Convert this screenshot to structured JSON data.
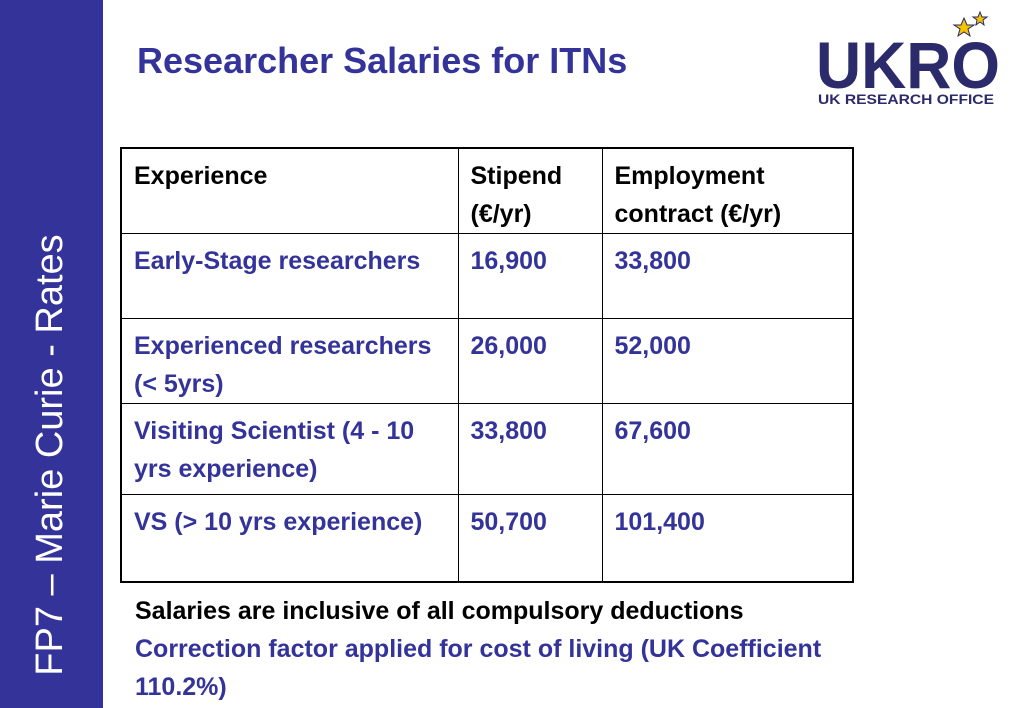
{
  "sidebar": {
    "text": "FP7 – Marie Curie - Rates"
  },
  "header": {
    "title": "Researcher Salaries for ITNs"
  },
  "logo": {
    "name": "UKRO",
    "subtitle": "UK RESEARCH OFFICE"
  },
  "table": {
    "columns": [
      "Experience",
      "Stipend (€/yr)",
      "Employment contract (€/yr)"
    ],
    "rows": [
      [
        "Early-Stage researchers",
        "16,900",
        "33,800"
      ],
      [
        "Experienced researchers (< 5yrs)",
        "26,000",
        "52,000"
      ],
      [
        "Visiting Scientist (4 - 10 yrs experience)",
        "33,800",
        "67,600"
      ],
      [
        "VS (> 10 yrs experience)",
        "50,700",
        "101,400"
      ]
    ]
  },
  "notes": [
    "Salaries are inclusive of all compulsory deductions",
    "Correction factor applied for cost of living (UK Coefficient 110.2%)"
  ]
}
